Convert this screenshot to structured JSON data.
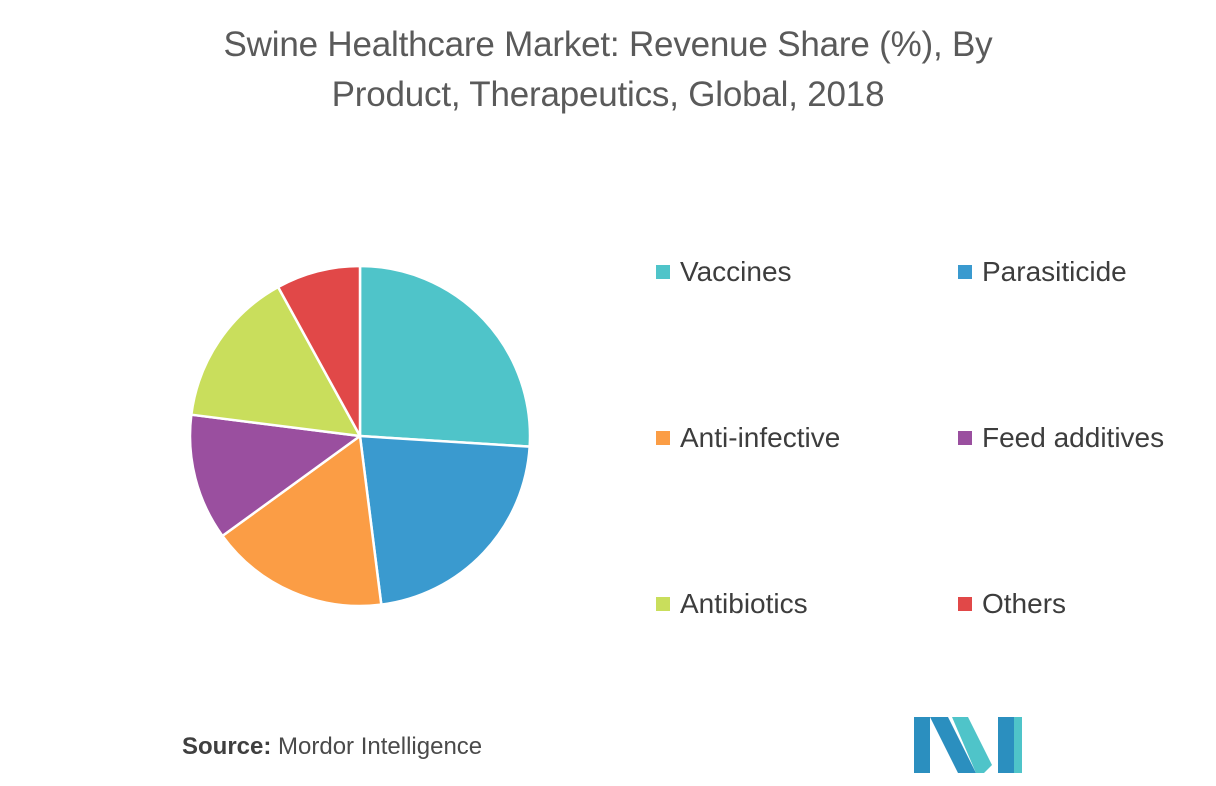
{
  "header": {
    "title_line1": "Swine Healthcare Market: Revenue Share (%), By",
    "title_line2": "Product, Therapeutics, Global, 2018"
  },
  "chart_data": {
    "type": "pie",
    "title": "Swine Healthcare Market: Revenue Share (%), By Product, Therapeutics, Global, 2018",
    "legend_position": "right",
    "slices": [
      {
        "name": "Vaccines",
        "value": 26,
        "color": "#4fc4c9"
      },
      {
        "name": "Parasiticide",
        "value": 22,
        "color": "#3a9acf"
      },
      {
        "name": "Anti-infective",
        "value": 17,
        "color": "#fb9d45"
      },
      {
        "name": "Feed additives",
        "value": 12,
        "color": "#9a4f9f"
      },
      {
        "name": "Antibiotics",
        "value": 15,
        "color": "#c9de5c"
      },
      {
        "name": "Others",
        "value": 8,
        "color": "#e14848"
      }
    ]
  },
  "source": {
    "label": "Source:",
    "text": "Mordor Intelligence"
  },
  "logo": {
    "colors": [
      "#2b8fbf",
      "#4fc4c9"
    ]
  }
}
